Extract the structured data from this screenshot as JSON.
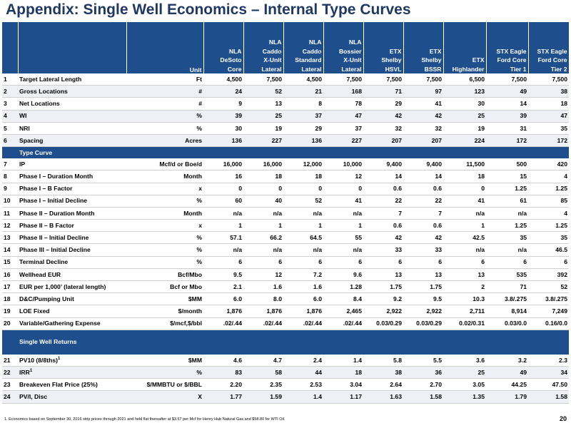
{
  "title": "Appendix: Single Well Economics – Internal Type Curves",
  "header": {
    "unit_label": "Unit",
    "columns": [
      [
        "NLA",
        "DeSoto",
        "Core"
      ],
      [
        "NLA",
        "Caddo",
        "X-Unit",
        "Lateral"
      ],
      [
        "NLA",
        "Caddo",
        "Standard",
        "Lateral"
      ],
      [
        "NLA",
        "Bossier",
        "X-Unit",
        "Lateral"
      ],
      [
        "ETX",
        "Shelby",
        "HSVL"
      ],
      [
        "ETX",
        "Shelby",
        "BSSR"
      ],
      [
        "ETX",
        "Highlander"
      ],
      [
        "STX Eagle",
        "Ford Core",
        "Tier 1"
      ],
      [
        "STX Eagle",
        "Ford Core",
        "Tier 2"
      ]
    ]
  },
  "rows_a": [
    {
      "n": "1",
      "label": "Target Lateral Length",
      "unit": "Ft",
      "v": [
        "4,500",
        "7,500",
        "4,500",
        "7,500",
        "7,500",
        "7,500",
        "6,500",
        "7,500",
        "7,500"
      ]
    },
    {
      "n": "2",
      "label": "Gross Locations",
      "unit": "#",
      "v": [
        "24",
        "52",
        "21",
        "168",
        "71",
        "97",
        "123",
        "49",
        "38"
      ]
    },
    {
      "n": "3",
      "label": "Net Locations",
      "unit": "#",
      "v": [
        "9",
        "13",
        "8",
        "78",
        "29",
        "41",
        "30",
        "14",
        "18"
      ]
    },
    {
      "n": "4",
      "label": "WI",
      "unit": "%",
      "v": [
        "39",
        "25",
        "37",
        "47",
        "42",
        "42",
        "25",
        "39",
        "47"
      ]
    },
    {
      "n": "5",
      "label": "NRI",
      "unit": "%",
      "v": [
        "30",
        "19",
        "29",
        "37",
        "32",
        "32",
        "19",
        "31",
        "35"
      ]
    },
    {
      "n": "6",
      "label": "Spacing",
      "unit": "Acres",
      "v": [
        "136",
        "227",
        "136",
        "227",
        "207",
        "207",
        "224",
        "172",
        "172"
      ]
    }
  ],
  "section_type_curve": "Type Curve",
  "rows_b": [
    {
      "n": "7",
      "label": "IP",
      "unit": "Mcf/d or Boe/d",
      "v": [
        "16,000",
        "16,000",
        "12,000",
        "10,000",
        "9,400",
        "9,400",
        "11,500",
        "500",
        "420"
      ]
    },
    {
      "n": "8",
      "label": "Phase I – Duration Month",
      "unit": "Month",
      "v": [
        "16",
        "18",
        "18",
        "12",
        "14",
        "14",
        "18",
        "15",
        "4"
      ]
    },
    {
      "n": "9",
      "label": "Phase I – B Factor",
      "unit": "x",
      "v": [
        "0",
        "0",
        "0",
        "0",
        "0.6",
        "0.6",
        "0",
        "1.25",
        "1.25"
      ]
    },
    {
      "n": "10",
      "label": "Phase I – Initial Decline",
      "unit": "%",
      "v": [
        "60",
        "40",
        "52",
        "41",
        "22",
        "22",
        "41",
        "61",
        "85"
      ]
    },
    {
      "n": "11",
      "label": "Phase II – Duration Month",
      "unit": "Month",
      "v": [
        "n/a",
        "n/a",
        "n/a",
        "n/a",
        "7",
        "7",
        "n/a",
        "n/a",
        "4"
      ]
    },
    {
      "n": "12",
      "label": "Phase II – B Factor",
      "unit": "x",
      "v": [
        "1",
        "1",
        "1",
        "1",
        "0.6",
        "0.6",
        "1",
        "1.25",
        "1.25"
      ]
    },
    {
      "n": "13",
      "label": "Phase II –  Initial Decline",
      "unit": "%",
      "v": [
        "57.1",
        "66.2",
        "64.5",
        "55",
        "42",
        "42",
        "42.5",
        "35",
        "35"
      ]
    },
    {
      "n": "14",
      "label": "Phase III – Initial Decline",
      "unit": "%",
      "v": [
        "n/a",
        "n/a",
        "n/a",
        "n/a",
        "33",
        "33",
        "n/a",
        "n/a",
        "46.5"
      ]
    },
    {
      "n": "15",
      "label": "Terminal Decline",
      "unit": "%",
      "v": [
        "6",
        "6",
        "6",
        "6",
        "6",
        "6",
        "6",
        "6",
        "6"
      ]
    },
    {
      "n": "16",
      "label": "Wellhead EUR",
      "unit": "Bcf/Mbo",
      "v": [
        "9.5",
        "12",
        "7.2",
        "9.6",
        "13",
        "13",
        "13",
        "535",
        "392"
      ]
    },
    {
      "n": "17",
      "label": "EUR per 1,000’ (lateral length)",
      "unit": "Bcf or Mbo",
      "v": [
        "2.1",
        "1.6",
        "1.6",
        "1.28",
        "1.75",
        "1.75",
        "2",
        "71",
        "52"
      ]
    },
    {
      "n": "18",
      "label": "D&C/Pumping Unit",
      "unit": "$MM",
      "v": [
        "6.0",
        "8.0",
        "6.0",
        "8.4",
        "9.2",
        "9.5",
        "10.3",
        "3.8/.275",
        "3.8/.275"
      ]
    },
    {
      "n": "19",
      "label": "LOE Fixed",
      "unit": "$/month",
      "v": [
        "1,876",
        "1,876",
        "1,876",
        "2,465",
        "2,922",
        "2,922",
        "2,711",
        "8,914",
        "7,249"
      ]
    },
    {
      "n": "20",
      "label": "Variable/Gathering Expense",
      "unit": "$/mcf,$/bbl",
      "v": [
        ".02/.44",
        ".02/.44",
        ".02/.44",
        ".02/.44",
        "0.03/0.29",
        "0.03/0.29",
        "0.02/0.31",
        "0.03/0.0",
        "0.16/0.0"
      ]
    }
  ],
  "section_returns": "Single Well Returns",
  "rows_c": [
    {
      "n": "21",
      "label": "PV10 (8/8ths)",
      "sup": "1",
      "unit": "$MM",
      "v": [
        "4.6",
        "4.7",
        "2.4",
        "1.4",
        "5.8",
        "5.5",
        "3.6",
        "3.2",
        "2.3"
      ]
    },
    {
      "n": "22",
      "label": "IRR",
      "sup": "1",
      "unit": "%",
      "v": [
        "83",
        "58",
        "44",
        "18",
        "38",
        "36",
        "25",
        "49",
        "34"
      ]
    },
    {
      "n": "23",
      "label": "Breakeven Flat Price (25%)",
      "unit": "$/MMBTU or $/BBL",
      "v": [
        "2.20",
        "2.35",
        "2.53",
        "3.04",
        "2.64",
        "2.70",
        "3.05",
        "44.25",
        "47.50"
      ]
    },
    {
      "n": "24",
      "label": "PV/I, Disc",
      "unit": "X",
      "v": [
        "1.77",
        "1.59",
        "1.4",
        "1.17",
        "1.63",
        "1.58",
        "1.35",
        "1.79",
        "1.58"
      ]
    }
  ],
  "footnote": "1.  Economics based on September 30, 2016 strip prices through 2021 and held flat thereafter at $3.57 per Mcf for Henry Hub Natural Gas and $58.80 for WTI Oil.",
  "page_number": "20",
  "colors": {
    "header_blue": "#1f4e8c",
    "title_blue": "#1f3864"
  }
}
